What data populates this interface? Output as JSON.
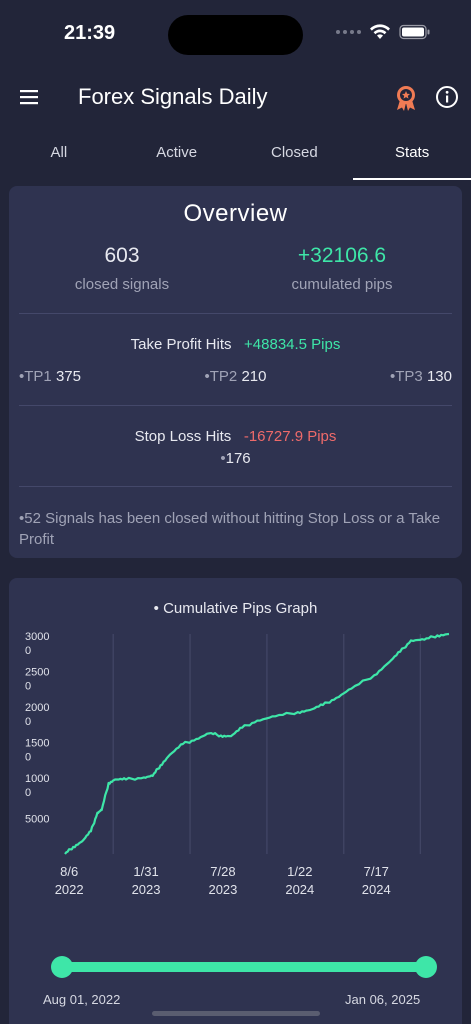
{
  "status_bar": {
    "time": "21:39"
  },
  "header": {
    "title": "Forex Signals Daily",
    "menu_icon": "hamburger-menu-icon",
    "badge_icon": "award-badge-icon",
    "info_icon": "info-icon"
  },
  "tabs": [
    {
      "label": "All"
    },
    {
      "label": "Active"
    },
    {
      "label": "Closed"
    },
    {
      "label": "Stats"
    }
  ],
  "active_tab": "Stats",
  "overview": {
    "title": "Overview",
    "closed_signals_value": "603",
    "closed_signals_label": "closed signals",
    "cumulated_pips_value": "+32106.6",
    "cumulated_pips_label": "cumulated pips",
    "take_profit_label": "Take Profit Hits",
    "take_profit_pips": "+48834.5 Pips",
    "tp_items": [
      {
        "label": "TP1",
        "value": "375"
      },
      {
        "label": "TP2",
        "value": "210"
      },
      {
        "label": "TP3",
        "value": "130"
      }
    ],
    "stop_loss_label": "Stop Loss Hits",
    "stop_loss_pips": "-16727.9 Pips",
    "stop_loss_count": "176",
    "note": "52 Signals has been closed without hitting Stop Loss or a Take Profit"
  },
  "graph": {
    "title": "Cumulative Pips Graph",
    "range_start": "Aug 01, 2022",
    "range_end": "Jan 06, 2025"
  },
  "colors": {
    "accent": "#3ee6a8",
    "negative": "#ee6a6a",
    "background": "#222539",
    "card": "#2f3350",
    "badge": "#f07b54"
  },
  "chart_data": {
    "type": "line",
    "title": "Cumulative Pips Graph",
    "ytick_labels": [
      "30000",
      "25000",
      "20000",
      "15000",
      "10000",
      "5000"
    ],
    "yticks": [
      30000,
      25000,
      20000,
      15000,
      10000,
      5000
    ],
    "xtick_labels": [
      [
        "8/6",
        "2022"
      ],
      [
        "1/31",
        "2023"
      ],
      [
        "7/28",
        "2023"
      ],
      [
        "1/22",
        "2024"
      ],
      [
        "7/17",
        "2024"
      ]
    ],
    "xticks": [
      "2022-08-06",
      "2023-01-31",
      "2023-07-28",
      "2024-01-22",
      "2024-07-17"
    ],
    "ylim": [
      0,
      31000
    ],
    "xlim": [
      "2022-08-01",
      "2025-01-06"
    ],
    "grid": "vertical",
    "series": [
      {
        "color": "#3ee6a8",
        "points": [
          [
            "2022-08-01",
            0
          ],
          [
            "2022-08-20",
            1000
          ],
          [
            "2022-09-10",
            1800
          ],
          [
            "2022-09-30",
            3200
          ],
          [
            "2022-10-15",
            5800
          ],
          [
            "2022-10-25",
            6200
          ],
          [
            "2022-11-10",
            10000
          ],
          [
            "2022-11-25",
            10500
          ],
          [
            "2022-12-20",
            10500
          ],
          [
            "2023-01-31",
            10800
          ],
          [
            "2023-02-20",
            11000
          ],
          [
            "2023-03-10",
            12500
          ],
          [
            "2023-04-01",
            14000
          ],
          [
            "2023-05-01",
            15500
          ],
          [
            "2023-06-01",
            16200
          ],
          [
            "2023-07-01",
            17000
          ],
          [
            "2023-07-28",
            16700
          ],
          [
            "2023-08-20",
            16600
          ],
          [
            "2023-09-15",
            17800
          ],
          [
            "2023-10-20",
            18800
          ],
          [
            "2023-12-01",
            19400
          ],
          [
            "2024-01-22",
            20000
          ],
          [
            "2024-02-20",
            20300
          ],
          [
            "2024-03-20",
            21000
          ],
          [
            "2024-04-20",
            22000
          ],
          [
            "2024-05-25",
            23300
          ],
          [
            "2024-07-17",
            25200
          ],
          [
            "2024-08-20",
            27000
          ],
          [
            "2024-09-15",
            28500
          ],
          [
            "2024-10-10",
            30100
          ],
          [
            "2024-11-10",
            30200
          ],
          [
            "2024-12-10",
            30800
          ],
          [
            "2025-01-06",
            31000
          ]
        ]
      }
    ]
  }
}
